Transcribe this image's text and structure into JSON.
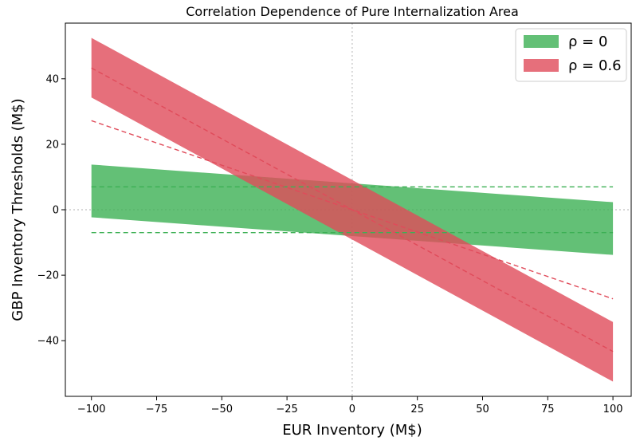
{
  "chart_data": {
    "type": "area",
    "title": "Correlation Dependence of Pure Internalization Area",
    "xlabel": "EUR Inventory (M$)",
    "ylabel": "GBP Inventory Thresholds (M$)",
    "xlim": [
      -110,
      107
    ],
    "ylim": [
      -57,
      57
    ],
    "x_ticks": [
      -100,
      -75,
      -50,
      -25,
      0,
      25,
      50,
      75,
      100
    ],
    "x_tick_labels": [
      "−100",
      "−75",
      "−50",
      "−25",
      "0",
      "25",
      "50",
      "75",
      "100"
    ],
    "y_ticks": [
      -40,
      -20,
      0,
      20,
      40
    ],
    "y_tick_labels": [
      "−40",
      "−20",
      "0",
      "20",
      "40"
    ],
    "grid": false,
    "reference_lines": {
      "x": 0,
      "y": 0,
      "style": "dotted"
    },
    "legend_position": "top-right",
    "series": [
      {
        "name": "ρ = 0",
        "color": "#3cb054",
        "band": {
          "x": [
            -100,
            100
          ],
          "upper": [
            13.8,
            2.3
          ],
          "lower": [
            -2.3,
            -13.8
          ]
        },
        "dashed": [
          {
            "x": [
              -100,
              100
            ],
            "y": [
              7,
              7
            ]
          },
          {
            "x": [
              -100,
              100
            ],
            "y": [
              -7,
              -7
            ]
          }
        ]
      },
      {
        "name": "ρ = 0.6",
        "color": "#e04b5a",
        "band": {
          "x": [
            -100,
            100
          ],
          "upper": [
            52.5,
            -34.3
          ],
          "lower": [
            34.3,
            -52.5
          ]
        },
        "dashed": [
          {
            "x": [
              -100,
              100
            ],
            "y": [
              43.3,
              -43.3
            ]
          },
          {
            "x": [
              -100,
              100
            ],
            "y": [
              27.2,
              -27.2
            ]
          }
        ]
      }
    ]
  }
}
